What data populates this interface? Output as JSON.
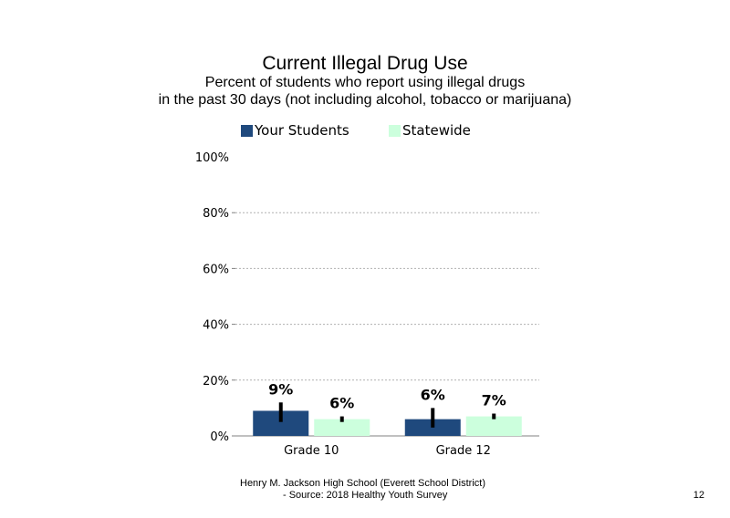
{
  "chart_data": {
    "type": "bar",
    "title": "Current Illegal Drug Use",
    "subtitle_lines": [
      "Percent of students who report using illegal drugs",
      "in the past 30 days (not including alcohol, tobacco or marijuana)"
    ],
    "categories": [
      "Grade 10",
      "Grade 12"
    ],
    "series": [
      {
        "name": "Your Students",
        "color": "#1f497d",
        "values": [
          9,
          6
        ],
        "data_labels": [
          "9%",
          "6%"
        ],
        "error_low": [
          5,
          3
        ],
        "error_high": [
          12,
          10
        ]
      },
      {
        "name": "Statewide",
        "color": "#ccffdd",
        "values": [
          6,
          7
        ],
        "data_labels": [
          "6%",
          "7%"
        ],
        "error_low": [
          5,
          6
        ],
        "error_high": [
          7,
          8
        ]
      }
    ],
    "y_ticks": [
      0,
      20,
      40,
      60,
      80,
      100
    ],
    "y_tick_labels": [
      "0%",
      "20%",
      "40%",
      "60%",
      "80%",
      "100%"
    ],
    "ylim": [
      0,
      100
    ],
    "grid": "dotted horizontal",
    "legend_position": "top"
  },
  "footer": {
    "line1": "Henry M. Jackson High School (Everett School District)",
    "line2": "- Source: 2018 Healthy Youth Survey",
    "page_number": "12"
  }
}
